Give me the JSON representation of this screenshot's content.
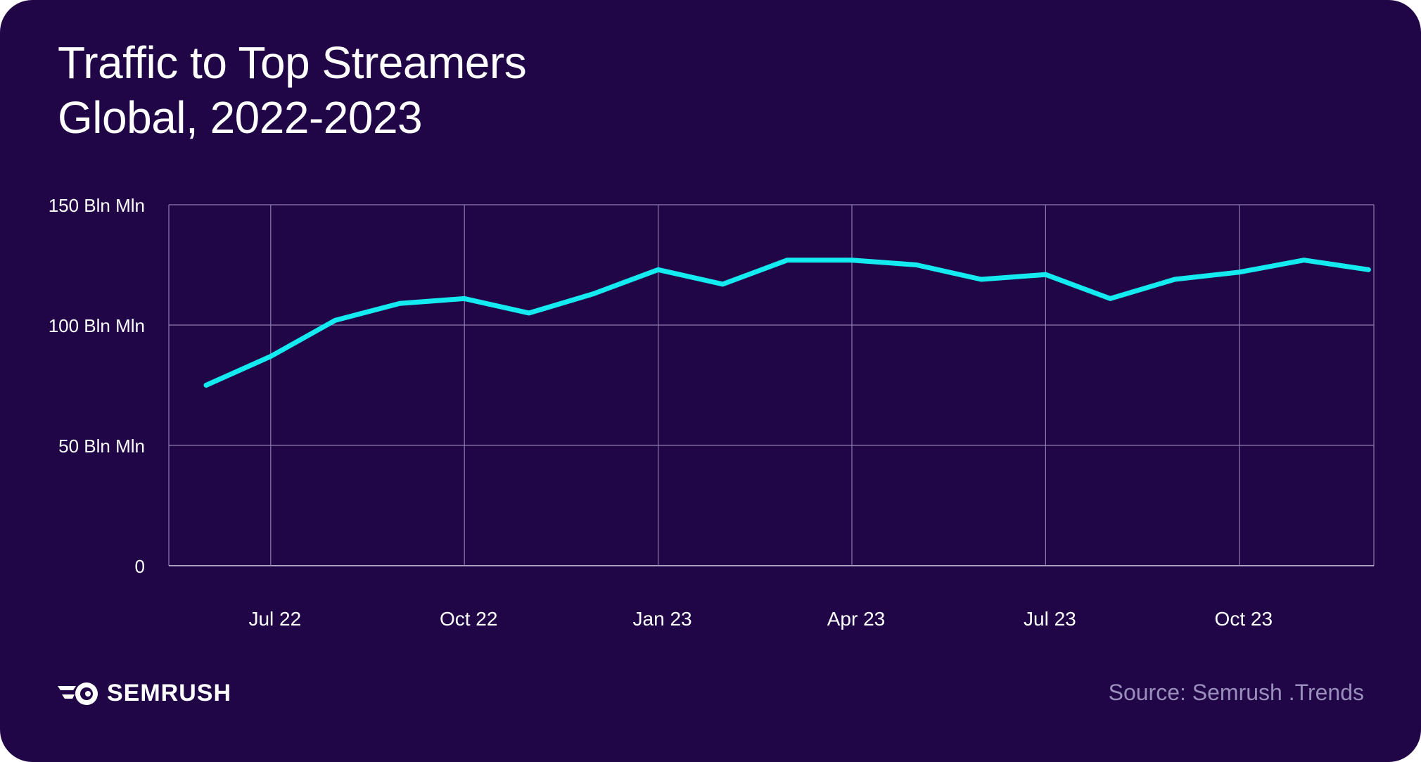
{
  "title_line1": "Traffic to Top Streamers",
  "title_line2": "Global, 2022-2023",
  "brand": {
    "name": "SEMRUSH",
    "icon": "semrush-logo-icon"
  },
  "source": "Source: Semrush .Trends",
  "colors": {
    "background": "#200647",
    "line": "#14ebf0",
    "grid": "#8d7bb0",
    "text": "#ffffff",
    "source": "#9a8ebd"
  },
  "chart_data": {
    "type": "line",
    "title": "Traffic to Top Streamers Global, 2022-2023",
    "xlabel": "",
    "ylabel": "",
    "ylim": [
      0,
      150
    ],
    "grid": true,
    "y_ticks": [
      {
        "value": 0,
        "label": "0"
      },
      {
        "value": 50,
        "label": "50 Bln Mln"
      },
      {
        "value": 100,
        "label": "100 Bln Mln"
      },
      {
        "value": 150,
        "label": "150 Bln Mln"
      }
    ],
    "x_ticks": [
      {
        "index": 1,
        "label": "Jul 22"
      },
      {
        "index": 4,
        "label": "Oct 22"
      },
      {
        "index": 7,
        "label": "Jan 23"
      },
      {
        "index": 10,
        "label": "Apr 23"
      },
      {
        "index": 13,
        "label": "Jul 23"
      },
      {
        "index": 16,
        "label": "Oct 23"
      }
    ],
    "x": [
      "Jun 22",
      "Jul 22",
      "Aug 22",
      "Sep 22",
      "Oct 22",
      "Nov 22",
      "Dec 22",
      "Jan 23",
      "Feb 23",
      "Mar 23",
      "Apr 23",
      "May 23",
      "Jun 23",
      "Jul 23",
      "Aug 23",
      "Sep 23",
      "Oct 23",
      "Nov 23",
      "Dec 23"
    ],
    "series": [
      {
        "name": "Traffic",
        "values": [
          75,
          87,
          102,
          109,
          111,
          105,
          113,
          123,
          117,
          127,
          127,
          125,
          119,
          121,
          111,
          119,
          122,
          127,
          123
        ]
      }
    ]
  }
}
